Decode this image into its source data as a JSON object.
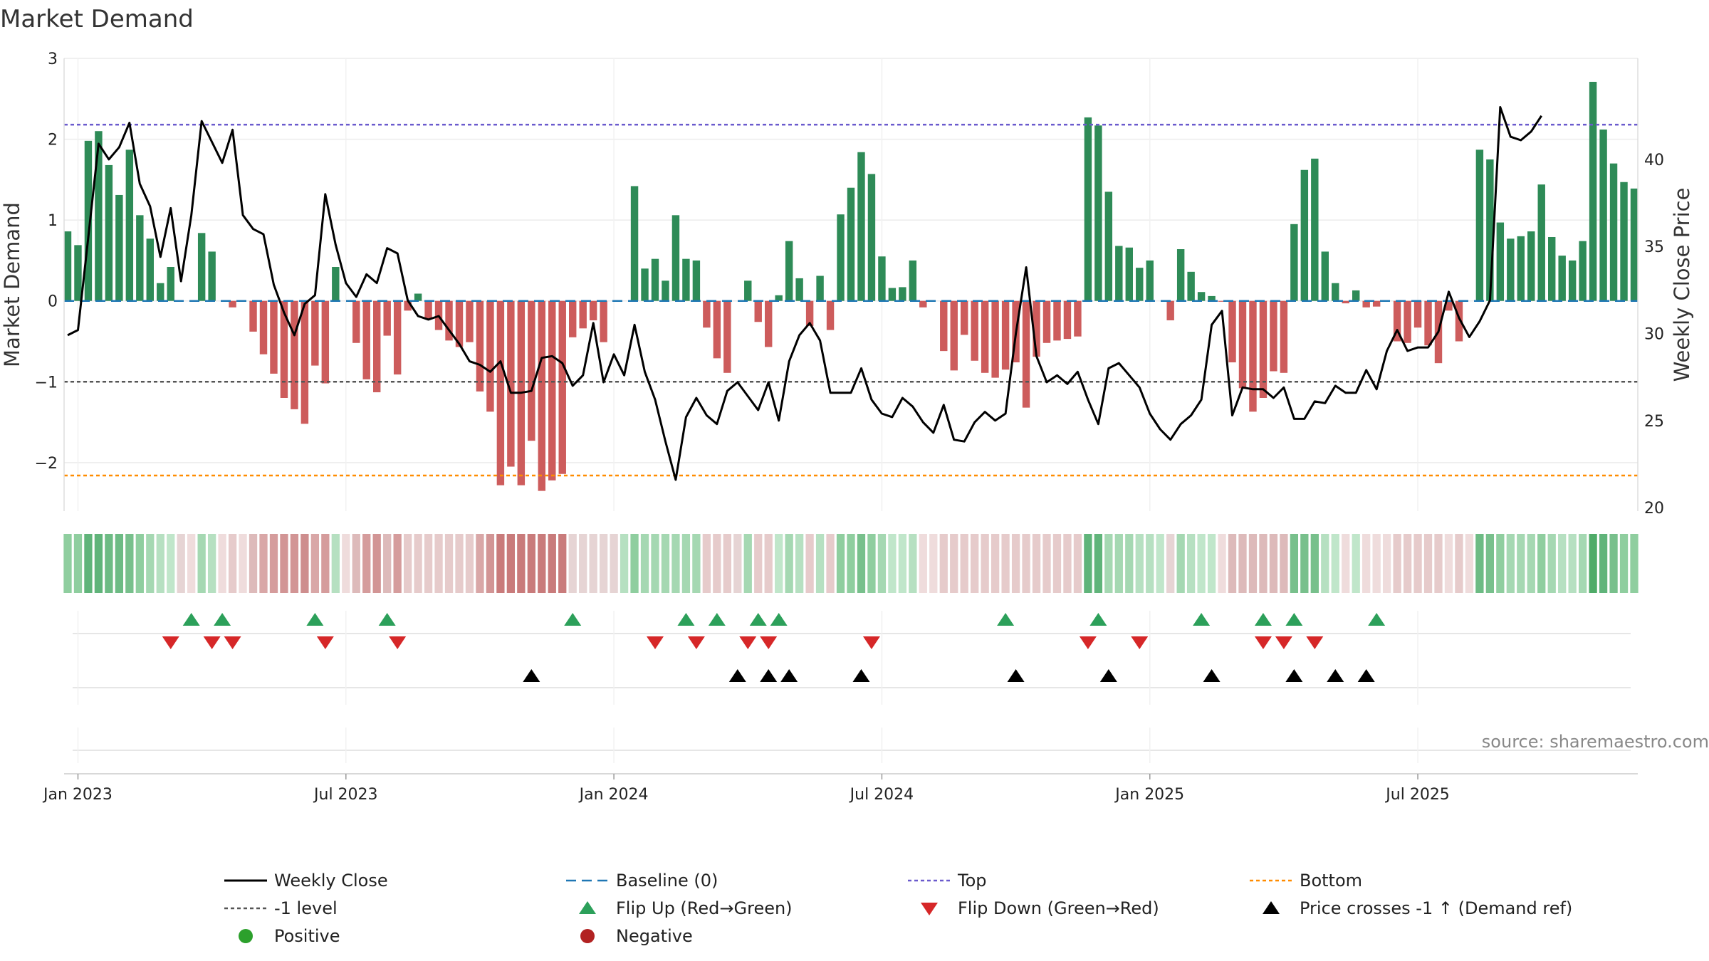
{
  "chart_data": {
    "type": "bar",
    "title": "Market Demand",
    "ylabel": "Market Demand",
    "y2label": "Weekly Close Price",
    "ylim": [
      -2.6,
      3.0
    ],
    "y2lim": [
      19.8,
      45.8
    ],
    "yticks": [
      "3",
      "2",
      "1",
      "0",
      "−1",
      "−2"
    ],
    "y2ticks": [
      "40",
      "35",
      "30",
      "25",
      "20"
    ],
    "xticks": [
      "Jan 2023",
      "Jul 2023",
      "Jan 2024",
      "Jul 2024",
      "Jan 2025",
      "Jul 2025"
    ],
    "xtick_weeks": [
      1,
      27,
      53,
      79,
      105,
      131
    ],
    "reference_lines": {
      "top": 2.18,
      "bottom": -2.16,
      "minus_one": -1,
      "baseline": 0
    },
    "series": [
      {
        "name": "Market Demand",
        "values": [
          0.86,
          0.69,
          1.98,
          2.1,
          1.68,
          1.31,
          1.87,
          1.06,
          0.77,
          0.22,
          0.42,
          0,
          0,
          0.84,
          0.61,
          0,
          -0.08,
          0,
          -0.38,
          -0.66,
          -0.9,
          -1.2,
          -1.34,
          -1.52,
          -0.8,
          -1.02,
          0.42,
          0,
          -0.52,
          -0.97,
          -1.13,
          -0.43,
          -0.91,
          -0.12,
          0.09,
          -0.22,
          -0.36,
          -0.49,
          -0.57,
          -0.51,
          -1.12,
          -1.37,
          -2.28,
          -2.05,
          -2.28,
          -1.73,
          -2.35,
          -2.22,
          -2.14,
          -0.45,
          -0.34,
          -0.24,
          -0.51,
          0,
          0,
          1.42,
          0.4,
          0.52,
          0.25,
          1.06,
          0.52,
          0.5,
          -0.33,
          -0.71,
          -0.89,
          0,
          0.25,
          -0.26,
          -0.57,
          0.07,
          0.74,
          0.28,
          -0.31,
          0.31,
          -0.36,
          1.07,
          1.4,
          1.84,
          1.57,
          0.55,
          0.16,
          0.17,
          0.5,
          -0.08,
          0,
          -0.62,
          -0.86,
          -0.42,
          -0.74,
          -0.89,
          -0.95,
          -0.85,
          -0.76,
          -1.32,
          -0.69,
          -0.52,
          -0.49,
          -0.47,
          -0.44,
          2.27,
          2.17,
          1.35,
          0.68,
          0.66,
          0.41,
          0.5,
          0,
          -0.24,
          0.64,
          0.36,
          0.11,
          0.06,
          -0.01,
          -0.76,
          -1.08,
          -1.37,
          -1.2,
          -0.87,
          -0.89,
          0.95,
          1.62,
          1.76,
          0.61,
          0.22,
          -0.03,
          0.13,
          -0.08,
          -0.07,
          0,
          -0.5,
          -0.52,
          -0.33,
          -0.55,
          -0.77,
          -0.12,
          -0.5,
          0,
          1.87,
          1.75,
          0.97,
          0.77,
          0.8,
          0.86,
          1.44,
          0.79,
          0.56,
          0.5,
          0.74,
          2.71,
          2.12,
          1.7,
          1.47,
          1.39
        ]
      },
      {
        "name": "Weekly Close",
        "values": [
          29.9,
          30.2,
          35.5,
          40.9,
          40.0,
          40.7,
          42.1,
          38.6,
          37.3,
          34.4,
          37.2,
          33.0,
          36.8,
          42.2,
          41.0,
          39.8,
          41.7,
          36.8,
          36.0,
          35.7,
          32.8,
          31.2,
          29.9,
          31.7,
          32.2,
          38.0,
          35.1,
          32.9,
          32.1,
          33.4,
          32.9,
          34.9,
          34.6,
          31.9,
          31.0,
          30.8,
          31.0,
          30.2,
          29.4,
          28.4,
          28.2,
          27.8,
          28.4,
          26.6,
          26.6,
          26.7,
          28.6,
          28.7,
          28.3,
          27.0,
          27.6,
          30.6,
          27.2,
          28.8,
          27.6,
          30.5,
          27.8,
          26.2,
          23.8,
          21.6,
          25.2,
          26.3,
          25.3,
          24.8,
          26.7,
          27.2,
          26.4,
          25.6,
          27.2,
          25.0,
          28.4,
          29.9,
          30.6,
          29.6,
          26.6,
          26.6,
          26.6,
          28.0,
          26.2,
          25.4,
          25.2,
          26.3,
          25.8,
          24.9,
          24.3,
          25.9,
          23.9,
          23.8,
          24.9,
          25.5,
          25.0,
          25.4,
          30.0,
          33.8,
          28.7,
          27.2,
          27.6,
          27.1,
          27.8,
          26.2,
          24.8,
          28.0,
          28.3,
          27.6,
          26.9,
          25.4,
          24.5,
          23.9,
          24.8,
          25.3,
          26.2,
          30.5,
          31.3,
          25.3,
          26.9,
          26.8,
          26.8,
          26.3,
          26.9,
          25.1,
          25.1,
          26.1,
          26.0,
          27.0,
          26.6,
          26.6,
          27.9,
          26.8,
          29.0,
          30.2,
          29.0,
          29.2,
          29.2,
          30.1,
          32.4,
          30.9,
          29.8,
          30.7,
          31.9,
          43.0,
          41.3,
          41.1,
          41.6,
          42.5
        ]
      }
    ],
    "strip_colors": [
      "#8fce9f",
      "#8fce9f",
      "#60b47a",
      "#60b47a",
      "#6dbb84",
      "#6dbb84",
      "#78c08c",
      "#8fce9f",
      "#a5d8b2",
      "#b6e0c1",
      "#c0e6ca",
      "#e6d4d4",
      "#efdcdc",
      "#a5d8b2",
      "#b6e0c1",
      "#efdcdc",
      "#e6cbcb",
      "#efdcdc",
      "#ddbaba",
      "#d9a7a7",
      "#d59c9c",
      "#d29595",
      "#d29595",
      "#ce8e8e",
      "#d9a7a7",
      "#d59c9c",
      "#b6e0c1",
      "#efdcdc",
      "#ddbaba",
      "#d59c9c",
      "#d29595",
      "#ddbaba",
      "#d59c9c",
      "#e6cbcb",
      "#e6cbcb",
      "#e6cbcb",
      "#e6cbcb",
      "#e6cbcb",
      "#e6cbcb",
      "#e6cbcb",
      "#d9a7a7",
      "#d29595",
      "#c97b7b",
      "#c97b7b",
      "#c97b7b",
      "#c97b7b",
      "#c97b7b",
      "#c97b7b",
      "#c97b7b",
      "#e6d4d4",
      "#e6d4d4",
      "#e6d4d4",
      "#e6d4d4",
      "#e6d4d4",
      "#b6e0c1",
      "#8fce9f",
      "#a5d8b2",
      "#a5d8b2",
      "#a5d8b2",
      "#a5d8b2",
      "#a5d8b2",
      "#a5d8b2",
      "#e6cbcb",
      "#e6cbcb",
      "#e6cbcb",
      "#e6d4d4",
      "#a5d8b2",
      "#e6cbcb",
      "#e6cbcb",
      "#c0e6ca",
      "#a5d8b2",
      "#b6e0c1",
      "#e6cbcb",
      "#b6e0c1",
      "#e6cbcb",
      "#8fce9f",
      "#8fce9f",
      "#78c08c",
      "#8fce9f",
      "#a5d8b2",
      "#c0e6ca",
      "#c0e6ca",
      "#b6e0c1",
      "#efdcdc",
      "#efdcdc",
      "#e6cbcb",
      "#e6cbcb",
      "#e6cbcb",
      "#e6cbcb",
      "#e6cbcb",
      "#e6cbcb",
      "#e6cbcb",
      "#e6cbcb",
      "#e6cbcb",
      "#e6cbcb",
      "#e6cbcb",
      "#e6cbcb",
      "#e6cbcb",
      "#e6cbcb",
      "#60b47a",
      "#60b47a",
      "#a5d8b2",
      "#a5d8b2",
      "#a5d8b2",
      "#b6e0c1",
      "#b6e0c1",
      "#c0e6ca",
      "#e6d4d4",
      "#a5d8b2",
      "#b6e0c1",
      "#c0e6ca",
      "#c0e6ca",
      "#efdcdc",
      "#ddbaba",
      "#ddbaba",
      "#ddbaba",
      "#ddbaba",
      "#ddbaba",
      "#ddbaba",
      "#78c08c",
      "#78c08c",
      "#78c08c",
      "#b6e0c1",
      "#c0e6ca",
      "#efdcdc",
      "#c0e6ca",
      "#efdcdc",
      "#efdcdc",
      "#efdcdc",
      "#e6cbcb",
      "#e6cbcb",
      "#e6cbcb",
      "#e6cbcb",
      "#e6cbcb",
      "#efdcdc",
      "#e6cbcb",
      "#efdcdc",
      "#6dbb84",
      "#78c08c",
      "#8fce9f",
      "#a5d8b2",
      "#a5d8b2",
      "#a5d8b2",
      "#8fce9f",
      "#a5d8b2",
      "#b6e0c1",
      "#b6e0c1",
      "#a5d8b2",
      "#4fab68",
      "#60b47a",
      "#78c08c",
      "#8fce9f",
      "#8fce9f"
    ],
    "flip_up_weeks": [
      12,
      15,
      24,
      31,
      49,
      60,
      63,
      67,
      69,
      91,
      100,
      110,
      116,
      119,
      127
    ],
    "flip_down_weeks": [
      10,
      14,
      16,
      25,
      32,
      57,
      61,
      66,
      68,
      78,
      99,
      104,
      116,
      118,
      121
    ],
    "price_cross_weeks": [
      45,
      65,
      68,
      70,
      77,
      92,
      101,
      111,
      119,
      123,
      126
    ]
  },
  "legend": [
    {
      "label": "Weekly Close",
      "symbol": "solid-line",
      "color": "#000000"
    },
    {
      "label": "Baseline (0)",
      "symbol": "dashed-line",
      "color": "#1f77b4"
    },
    {
      "label": "Top",
      "symbol": "dotted-line",
      "color": "#6a5acd"
    },
    {
      "label": "Bottom",
      "symbol": "dotted-line",
      "color": "#ff8c00"
    },
    {
      "label": "-1 level",
      "symbol": "dotted-line",
      "color": "#555555"
    },
    {
      "label": "Flip Up (Red→Green)",
      "symbol": "triangle-up",
      "color": "#2ca05a"
    },
    {
      "label": "Flip Down (Green→Red)",
      "symbol": "triangle-down",
      "color": "#d62728"
    },
    {
      "label": "Price crosses -1 ↑ (Demand ref)",
      "symbol": "triangle-up",
      "color": "#000000"
    },
    {
      "label": "Positive",
      "symbol": "circle",
      "color": "#2ca02c"
    },
    {
      "label": "Negative",
      "symbol": "circle",
      "color": "#b22222"
    }
  ],
  "colors": {
    "positive_bar": "#2e8b57",
    "negative_bar": "#cd5c5c",
    "close_line": "#000000",
    "baseline": "#1f77b4",
    "top": "#6a5acd",
    "bottom": "#ff8c00",
    "minus_one": "#555555",
    "flip_up": "#2ca05a",
    "flip_down": "#d62728",
    "price_cross": "#000000"
  },
  "source": "source: sharemaestro.com"
}
